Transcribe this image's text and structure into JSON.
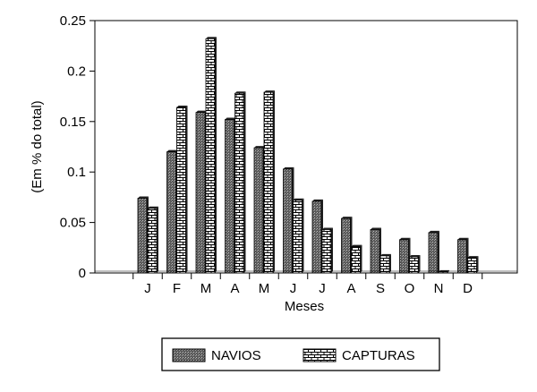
{
  "chart_data": {
    "type": "bar",
    "title": "",
    "xlabel": "Meses",
    "ylabel": "(Em % do total)",
    "ylim": [
      0,
      0.25
    ],
    "yticks": [
      0,
      0.05,
      0.1,
      0.15,
      0.2,
      0.25
    ],
    "ytick_labels": [
      "0",
      "0.05",
      "0.1",
      "0.15",
      "0.2",
      "0.25"
    ],
    "categories": [
      "J",
      "F",
      "M",
      "A",
      "M",
      "J",
      "J",
      "A",
      "S",
      "O",
      "N",
      "D"
    ],
    "series": [
      {
        "name": "NAVIOS",
        "values": [
          0.074,
          0.12,
          0.159,
          0.152,
          0.124,
          0.103,
          0.071,
          0.054,
          0.043,
          0.033,
          0.04,
          0.033
        ]
      },
      {
        "name": "CAPTURAS",
        "values": [
          0.064,
          0.164,
          0.232,
          0.178,
          0.179,
          0.072,
          0.043,
          0.026,
          0.017,
          0.016,
          0.001,
          0.015
        ]
      }
    ],
    "grid": false,
    "legend_position": "bottom"
  }
}
